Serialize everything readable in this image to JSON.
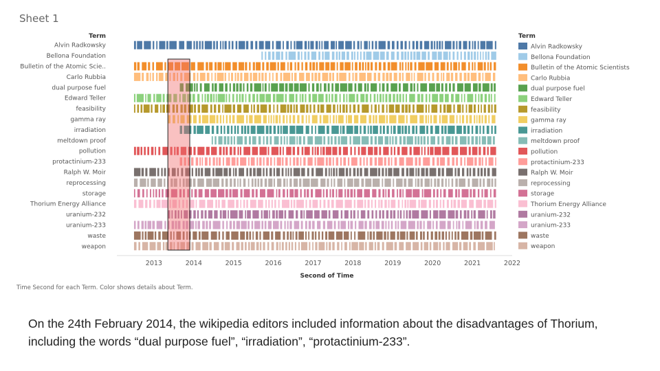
{
  "sheet_title": "Sheet 1",
  "footnote": "Time Second for each Term.  Color shows details about Term.",
  "caption": "On the 24th February 2014, the wikipedia editors included information about the disadvantages of Thorium, including the words “dual purpose fuel”, “irradiation”, “protactinium-233”.",
  "highlight_color": "#f06b6b",
  "chart_data": {
    "type": "strip",
    "title": "",
    "row_header": "Term",
    "legend_title": "Term",
    "legend_position": "right",
    "xlabel": "Second of Time",
    "xlim": [
      2012.5,
      2022.5
    ],
    "x_ticks": [
      "2013",
      "2014",
      "2015",
      "2016",
      "2017",
      "2018",
      "2019",
      "2020",
      "2021",
      "2022"
    ],
    "highlight_range": [
      2013.85,
      2014.4
    ],
    "series": [
      {
        "label": "Alvin Radkowsky",
        "legend": "Alvin Radkowsky",
        "color": "#4e79a7",
        "start": 2013.0
      },
      {
        "label": "Bellona Foundation",
        "legend": "Bellona Foundation",
        "color": "#a0cbe8",
        "start": 2016.2
      },
      {
        "label": "Bulletin of the Atomic Scie..",
        "legend": "Bulletin of the Atomic Scientists",
        "color": "#f28e2b",
        "start": 2013.0
      },
      {
        "label": "Carlo Rubbia",
        "legend": "Carlo Rubbia",
        "color": "#ffbe7d",
        "start": 2013.0
      },
      {
        "label": "dual purpose fuel",
        "legend": "dual purpose fuel",
        "color": "#59a14f",
        "start": 2014.15
      },
      {
        "label": "Edward Teller",
        "legend": "Edward Teller",
        "color": "#8cd17d",
        "start": 2013.0
      },
      {
        "label": "feasibility",
        "legend": "feasibility",
        "color": "#b6992d",
        "start": 2013.0
      },
      {
        "label": "gamma ray",
        "legend": "gamma ray",
        "color": "#f1ce63",
        "start": 2013.85
      },
      {
        "label": "irradiation",
        "legend": "irradiation",
        "color": "#499894",
        "start": 2014.15
      },
      {
        "label": "meltdown proof",
        "legend": "meltdown proof",
        "color": "#86bcb6",
        "start": 2014.95
      },
      {
        "label": "pollution",
        "legend": "pollution",
        "color": "#e15759",
        "start": 2013.0
      },
      {
        "label": "protactinium-233",
        "legend": "protactinium-233",
        "color": "#ff9d9a",
        "start": 2014.15
      },
      {
        "label": "Ralph W. Moir",
        "legend": "Ralph W. Moir",
        "color": "#79706e",
        "start": 2013.0
      },
      {
        "label": "reprocessing",
        "legend": "reprocessing",
        "color": "#bab0ac",
        "start": 2013.0
      },
      {
        "label": "storage",
        "legend": "storage",
        "color": "#d37295",
        "start": 2013.0
      },
      {
        "label": "Thorium Energy Alliance",
        "legend": "Thorium Energy Alliance",
        "color": "#fabfd2",
        "start": 2013.0
      },
      {
        "label": "uranium-232",
        "legend": "uranium-232",
        "color": "#b07aa1",
        "start": 2013.85
      },
      {
        "label": "uranium-233",
        "legend": "uranium-233",
        "color": "#d4a6c8",
        "start": 2013.0
      },
      {
        "label": "waste",
        "legend": "waste",
        "color": "#9d7660",
        "start": 2013.0
      },
      {
        "label": "weapon",
        "legend": "weapon",
        "color": "#d7b5a6",
        "start": 2013.0
      }
    ]
  }
}
